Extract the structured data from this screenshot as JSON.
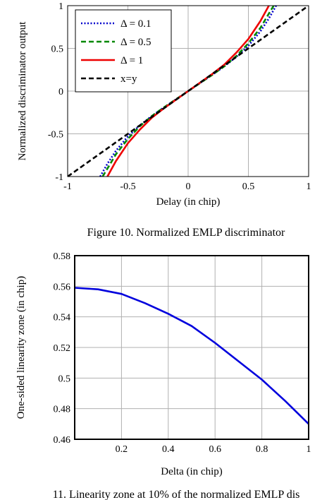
{
  "figure10": {
    "caption": "Figure 10. Normalized EMLP discriminator"
  },
  "figure11": {
    "caption": "11. Linearity zone at 10% of the normalized EMLP dis"
  },
  "chart_data": [
    {
      "type": "line",
      "xlabel": "Delay (in chip)",
      "ylabel": "Normalized discriminator output",
      "xlim": [
        -1,
        1
      ],
      "ylim": [
        -1,
        1
      ],
      "xticks": [
        "-1",
        "-0.5",
        "0",
        "0.5",
        "1"
      ],
      "yticks": [
        "-1",
        "-0.5",
        "0",
        "0.5",
        "1"
      ],
      "grid": true,
      "legend": "top-left",
      "series": [
        {
          "name": "Δ = 0.1",
          "color": "#0000cc",
          "style": "dotted",
          "x": [
            -0.73,
            -0.67,
            -0.6,
            -0.5,
            -0.4,
            -0.3,
            -0.2,
            -0.1,
            0,
            0.1,
            0.2,
            0.3,
            0.4,
            0.5,
            0.6,
            0.67,
            0.73
          ],
          "y": [
            -1,
            -0.85,
            -0.7,
            -0.53,
            -0.4,
            -0.29,
            -0.19,
            -0.095,
            0,
            0.095,
            0.19,
            0.29,
            0.4,
            0.53,
            0.7,
            0.85,
            1
          ]
        },
        {
          "name": "Δ = 0.5",
          "color": "#008800",
          "style": "dashed",
          "x": [
            -0.71,
            -0.65,
            -0.6,
            -0.5,
            -0.4,
            -0.3,
            -0.2,
            -0.1,
            0,
            0.1,
            0.2,
            0.3,
            0.4,
            0.5,
            0.6,
            0.65,
            0.71
          ],
          "y": [
            -1,
            -0.86,
            -0.74,
            -0.56,
            -0.41,
            -0.29,
            -0.19,
            -0.095,
            0,
            0.095,
            0.19,
            0.29,
            0.41,
            0.56,
            0.74,
            0.86,
            1
          ]
        },
        {
          "name": "Δ = 1",
          "color": "#ee0000",
          "style": "solid",
          "x": [
            -0.67,
            -0.6,
            -0.5,
            -0.4,
            -0.3,
            -0.2,
            -0.1,
            0,
            0.1,
            0.2,
            0.3,
            0.4,
            0.5,
            0.6,
            0.67
          ],
          "y": [
            -1,
            -0.82,
            -0.61,
            -0.45,
            -0.31,
            -0.2,
            -0.1,
            0,
            0.1,
            0.2,
            0.31,
            0.45,
            0.61,
            0.82,
            1
          ]
        },
        {
          "name": "x=y",
          "color": "#000000",
          "style": "dashed-bold",
          "x": [
            -1,
            1
          ],
          "y": [
            -1,
            1
          ]
        }
      ]
    },
    {
      "type": "line",
      "xlabel": "Delta (in chip)",
      "ylabel": "One-sided linearity zone (in chip)",
      "xlim": [
        0,
        1
      ],
      "ylim": [
        0.46,
        0.58
      ],
      "xticks": [
        "0.2",
        "0.4",
        "0.6",
        "0.8",
        "1"
      ],
      "yticks": [
        "0.46",
        "0.48",
        "0.5",
        "0.52",
        "0.54",
        "0.56",
        "0.58"
      ],
      "grid": true,
      "series": [
        {
          "color": "#0000dd",
          "style": "solid",
          "x": [
            0,
            0.1,
            0.2,
            0.3,
            0.4,
            0.5,
            0.6,
            0.7,
            0.8,
            0.9,
            1.0
          ],
          "y": [
            0.559,
            0.558,
            0.555,
            0.549,
            0.542,
            0.534,
            0.523,
            0.511,
            0.499,
            0.485,
            0.47
          ]
        }
      ]
    }
  ]
}
